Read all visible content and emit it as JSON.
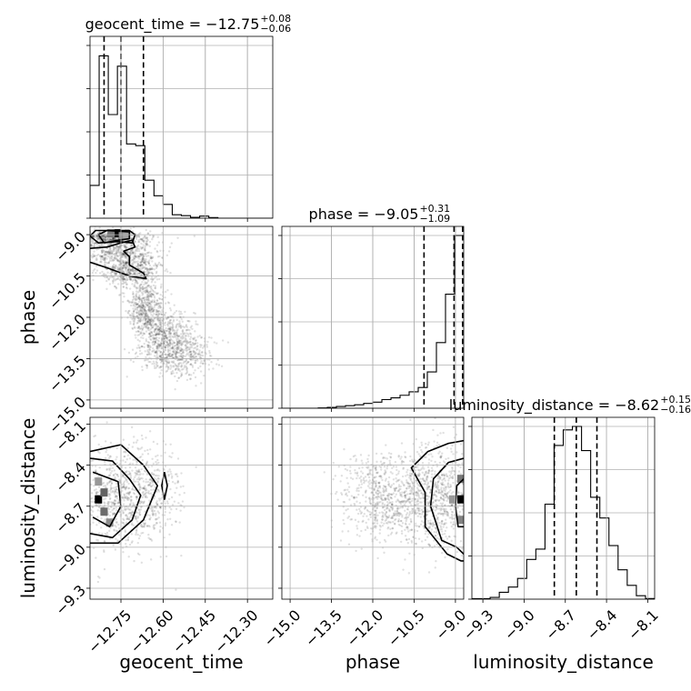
{
  "chart_data": {
    "type": "corner",
    "parameters": [
      {
        "name": "geocent_time",
        "label": "geocent_time",
        "title": "geocent_time = −12.75",
        "err_plus": "+0.08",
        "err_minus": "−0.06",
        "range": [
          -12.86,
          -12.21
        ],
        "ticks": [
          -12.75,
          -12.6,
          -12.45,
          -12.3
        ],
        "tick_labels": [
          "−12.75",
          "−12.60",
          "−12.45",
          "−12.30"
        ],
        "quantiles": [
          -12.81,
          -12.75,
          -12.67
        ],
        "hist_edges": [
          -12.86,
          -12.8275,
          -12.795,
          -12.7625,
          -12.73,
          -12.6975,
          -12.665,
          -12.6325,
          -12.6,
          -12.5675,
          -12.535,
          -12.5025,
          -12.47,
          -12.4375,
          -12.405,
          -12.3725,
          -12.34,
          -12.3075,
          -12.275,
          -12.2425,
          -12.21
        ],
        "hist_counts": [
          0.19,
          0.94,
          0.6,
          0.88,
          0.43,
          0.42,
          0.22,
          0.13,
          0.08,
          0.02,
          0.015,
          0.005,
          0.012,
          0.004,
          0,
          0,
          0,
          0,
          0,
          0
        ]
      },
      {
        "name": "phase",
        "label": "phase",
        "title": "phase = −9.05",
        "err_plus": "+0.31",
        "err_minus": "−1.09",
        "range": [
          -15.3,
          -8.7
        ],
        "ticks": [
          -15.0,
          -13.5,
          -12.0,
          -10.5,
          -9.0
        ],
        "tick_labels": [
          "−15.0",
          "−13.5",
          "−12.0",
          "−10.5",
          "−9.0"
        ],
        "quantiles": [
          -10.14,
          -9.05,
          -8.74
        ],
        "hist_edges": [
          -15.3,
          -14.97,
          -14.64,
          -14.31,
          -13.98,
          -13.65,
          -13.32,
          -12.99,
          -12.66,
          -12.33,
          -12.0,
          -11.67,
          -11.34,
          -11.01,
          -10.68,
          -10.35,
          -10.02,
          -9.69,
          -9.36,
          -9.03,
          -8.7
        ],
        "hist_counts": [
          0,
          0,
          0,
          0,
          0.002,
          0.005,
          0.01,
          0.015,
          0.02,
          0.028,
          0.035,
          0.05,
          0.06,
          0.075,
          0.095,
          0.12,
          0.21,
          0.38,
          0.66,
          1.0
        ]
      },
      {
        "name": "luminosity_distance",
        "label": "luminosity_distance",
        "title": "luminosity_distance = −8.62",
        "err_plus": "+0.15",
        "err_minus": "−0.16",
        "range": [
          -9.38,
          -8.05
        ],
        "ticks": [
          -9.3,
          -9.0,
          -8.7,
          -8.4,
          -8.1
        ],
        "tick_labels": [
          "−9.3",
          "−9.0",
          "−8.7",
          "−8.4",
          "−8.1"
        ],
        "quantiles": [
          -8.78,
          -8.62,
          -8.47
        ],
        "hist_edges": [
          -9.38,
          -9.3135,
          -9.247,
          -9.1805,
          -9.114,
          -9.0475,
          -8.981,
          -8.9145,
          -8.848,
          -8.7815,
          -8.715,
          -8.6485,
          -8.582,
          -8.5155,
          -8.449,
          -8.3825,
          -8.316,
          -8.2495,
          -8.183,
          -8.1165,
          -8.05
        ],
        "hist_counts": [
          0.003,
          0.003,
          0.01,
          0.04,
          0.07,
          0.12,
          0.23,
          0.29,
          0.55,
          0.89,
          0.98,
          1.0,
          0.86,
          0.59,
          0.47,
          0.31,
          0.17,
          0.08,
          0.02,
          0.004
        ]
      }
    ],
    "hist_yticks": [
      0.0,
      0.25,
      0.5,
      0.75,
      1.0
    ],
    "pairs": [
      {
        "x_param": "geocent_time",
        "y_param": "phase",
        "core_cells": [
          [
            -12.765,
            -8.95,
            1.0
          ],
          [
            -12.785,
            -8.95,
            0.45
          ],
          [
            -12.745,
            -9.05,
            0.35
          ],
          [
            -12.73,
            -9.0,
            0.25
          ]
        ],
        "contours": [
          [
            [
              -12.81,
              -9.3
            ],
            [
              -12.76,
              -9.2
            ],
            [
              -12.72,
              -9.15
            ],
            [
              -12.72,
              -8.9
            ],
            [
              -12.8,
              -8.85
            ],
            [
              -12.83,
              -9.0
            ],
            [
              -12.81,
              -9.3
            ]
          ],
          [
            [
              -12.86,
              -9.5
            ],
            [
              -12.8,
              -9.45
            ],
            [
              -12.75,
              -9.3
            ],
            [
              -12.71,
              -9.2
            ],
            [
              -12.7,
              -9.45
            ],
            [
              -12.74,
              -9.6
            ],
            [
              -12.72,
              -9.8
            ],
            [
              -12.72,
              -10.1
            ],
            [
              -12.67,
              -10.4
            ],
            [
              -12.66,
              -10.6
            ],
            [
              -12.72,
              -10.5
            ],
            [
              -12.8,
              -10.2
            ],
            [
              -12.86,
              -10.0
            ]
          ],
          [
            [
              -12.86,
              -9.05
            ],
            [
              -12.83,
              -9.3
            ],
            [
              -12.76,
              -9.25
            ],
            [
              -12.71,
              -9.3
            ],
            [
              -12.7,
              -9.0
            ],
            [
              -12.72,
              -8.85
            ],
            [
              -12.84,
              -8.85
            ],
            [
              -12.86,
              -9.05
            ]
          ]
        ],
        "cloud": [
          [
            -12.8,
            -9.1,
            0.08,
            0.12
          ],
          [
            -12.76,
            -9.6,
            0.07,
            0.3
          ],
          [
            -12.72,
            -10.3,
            0.05,
            0.3
          ],
          [
            -12.66,
            -11.6,
            0.03,
            0.5
          ],
          [
            -12.6,
            -12.6,
            0.05,
            0.5
          ],
          [
            -12.55,
            -13.4,
            0.06,
            0.4
          ]
        ]
      },
      {
        "x_param": "geocent_time",
        "y_param": "luminosity_distance",
        "core_cells": [
          [
            -12.83,
            -8.65,
            1.0
          ],
          [
            -12.81,
            -8.6,
            0.55
          ],
          [
            -12.81,
            -8.74,
            0.5
          ],
          [
            -12.83,
            -8.52,
            0.3
          ],
          [
            -12.79,
            -8.82,
            0.35
          ]
        ],
        "contours": [
          [
            [
              -12.85,
              -8.45
            ],
            [
              -12.76,
              -8.52
            ],
            [
              -12.75,
              -8.7
            ],
            [
              -12.79,
              -8.85
            ],
            [
              -12.85,
              -8.78
            ]
          ],
          [
            [
              -12.86,
              -8.35
            ],
            [
              -12.78,
              -8.37
            ],
            [
              -12.72,
              -8.5
            ],
            [
              -12.68,
              -8.62
            ],
            [
              -12.71,
              -8.8
            ],
            [
              -12.78,
              -8.93
            ],
            [
              -12.86,
              -8.9
            ]
          ],
          [
            [
              -12.86,
              -8.3
            ],
            [
              -12.75,
              -8.25
            ],
            [
              -12.67,
              -8.4
            ],
            [
              -12.62,
              -8.55
            ],
            [
              -12.67,
              -8.8
            ],
            [
              -12.76,
              -8.97
            ],
            [
              -12.86,
              -8.97
            ]
          ],
          [
            [
              -12.595,
              -8.45
            ],
            [
              -12.585,
              -8.55
            ],
            [
              -12.595,
              -8.65
            ],
            [
              -12.605,
              -8.55
            ],
            [
              -12.595,
              -8.45
            ]
          ]
        ],
        "cloud": [
          [
            -12.78,
            -8.62,
            0.06,
            0.18
          ],
          [
            -12.66,
            -8.62,
            0.06,
            0.18
          ]
        ]
      },
      {
        "x_param": "phase",
        "y_param": "luminosity_distance",
        "core_cells": [
          [
            -8.8,
            -8.65,
            1.0
          ],
          [
            -8.8,
            -8.5,
            0.45
          ],
          [
            -8.8,
            -8.8,
            0.4
          ],
          [
            -9.1,
            -8.65,
            0.3
          ]
        ],
        "contours": [
          [
            [
              -8.7,
              -8.5
            ],
            [
              -8.95,
              -8.55
            ],
            [
              -9.0,
              -8.7
            ],
            [
              -8.9,
              -8.85
            ],
            [
              -8.7,
              -8.85
            ]
          ],
          [
            [
              -8.7,
              -8.35
            ],
            [
              -9.25,
              -8.38
            ],
            [
              -9.8,
              -8.5
            ],
            [
              -9.9,
              -8.7
            ],
            [
              -9.5,
              -8.95
            ],
            [
              -8.95,
              -9.0
            ],
            [
              -8.7,
              -9.05
            ]
          ],
          [
            [
              -8.7,
              -8.22
            ],
            [
              -9.25,
              -8.24
            ],
            [
              -10.0,
              -8.3
            ],
            [
              -10.6,
              -8.42
            ],
            [
              -10.1,
              -8.6
            ],
            [
              -10.1,
              -8.85
            ],
            [
              -9.3,
              -9.05
            ],
            [
              -8.8,
              -9.1
            ],
            [
              -8.7,
              -9.1
            ]
          ]
        ],
        "cloud": [
          [
            -10.4,
            -8.62,
            0.8,
            0.18
          ],
          [
            -9.5,
            -8.62,
            0.6,
            0.2
          ],
          [
            -11.8,
            -8.65,
            0.7,
            0.15
          ]
        ]
      }
    ]
  }
}
